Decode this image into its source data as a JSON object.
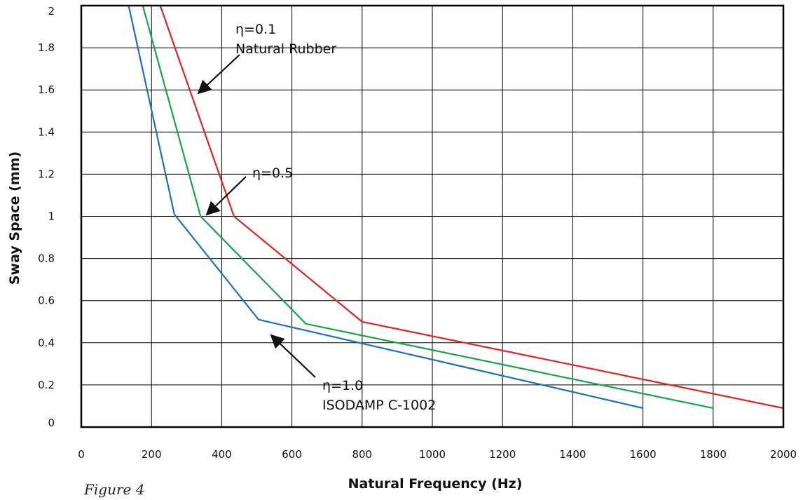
{
  "figure_label": "Figure 4",
  "chart_data": {
    "type": "line",
    "xlabel": "Natural Frequency (Hz)",
    "ylabel": "Sway Space (mm)",
    "xlim": [
      0,
      2000
    ],
    "ylim": [
      0,
      2
    ],
    "x_ticks": [
      "0",
      "200",
      "400",
      "600",
      "800",
      "1000",
      "1200",
      "1400",
      "1600",
      "1800",
      "2000"
    ],
    "y_ticks": [
      "0",
      "0.2",
      "0.4",
      "0.6",
      "0.8",
      "1",
      "1.2",
      "1.4",
      "1.6",
      "1.8",
      "2"
    ],
    "grid": true,
    "series": [
      {
        "color": "#e02424",
        "x": [
          225,
          435,
          800,
          2000
        ],
        "y": [
          2.0,
          1.0,
          0.5,
          0.09
        ]
      },
      {
        "color": "#1aa34a",
        "x": [
          175,
          340,
          640,
          1800
        ],
        "y": [
          2.0,
          1.0,
          0.49,
          0.09
        ]
      },
      {
        "color": "#1f6fbf",
        "x": [
          135,
          265,
          505,
          1600
        ],
        "y": [
          2.0,
          1.01,
          0.51,
          0.09
        ]
      }
    ],
    "annotations": [
      {
        "lines": [
          "η=0.1",
          "Natural Rubber"
        ]
      },
      {
        "lines": [
          "η=0.5"
        ]
      },
      {
        "lines": [
          "η=1.0",
          "ISODAMP C-1002"
        ]
      }
    ]
  }
}
